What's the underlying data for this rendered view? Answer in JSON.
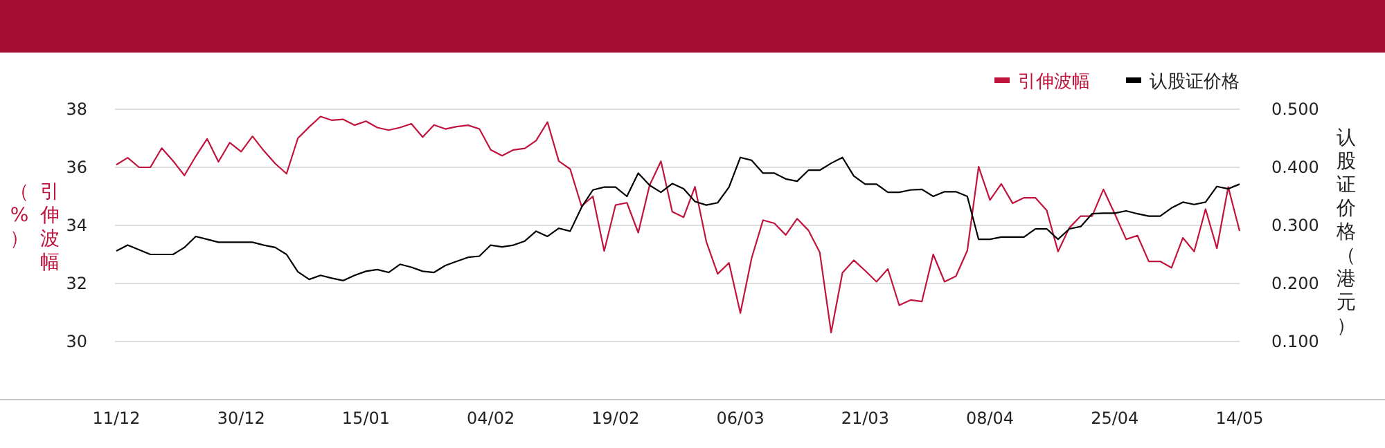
{
  "chart_data": {
    "type": "line",
    "categories": [
      "11/12",
      null,
      null,
      null,
      null,
      null,
      null,
      null,
      null,
      null,
      null,
      "30/12",
      null,
      null,
      null,
      null,
      null,
      null,
      null,
      null,
      null,
      null,
      "15/01",
      null,
      null,
      null,
      null,
      null,
      null,
      null,
      null,
      null,
      null,
      "04/02",
      null,
      null,
      null,
      null,
      null,
      null,
      null,
      null,
      null,
      null,
      "19/02",
      null,
      null,
      null,
      null,
      null,
      null,
      null,
      null,
      null,
      null,
      "06/03",
      null,
      null,
      null,
      null,
      null,
      null,
      null,
      null,
      null,
      null,
      "21/03",
      null,
      null,
      null,
      null,
      null,
      null,
      null,
      null,
      null,
      null,
      "08/04",
      null,
      null,
      null,
      null,
      null,
      null,
      null,
      null,
      null,
      null,
      "25/04",
      null,
      null,
      null,
      null,
      null,
      null,
      null,
      null,
      null,
      null,
      "14/05"
    ],
    "series": [
      {
        "name": "引伸波幅",
        "color": "#c0143c",
        "values": [
          36.09,
          36.33,
          36.0,
          36.0,
          36.66,
          36.22,
          35.72,
          36.38,
          36.98,
          36.19,
          36.85,
          36.54,
          37.07,
          36.57,
          36.13,
          35.78,
          37.0,
          37.39,
          37.75,
          37.62,
          37.65,
          37.45,
          37.59,
          37.37,
          37.28,
          37.37,
          37.5,
          37.04,
          37.46,
          37.32,
          37.4,
          37.45,
          37.32,
          36.6,
          36.4,
          36.6,
          36.65,
          36.92,
          37.56,
          36.21,
          35.94,
          34.66,
          35.0,
          33.12,
          34.7,
          34.78,
          33.75,
          35.38,
          36.21,
          34.47,
          34.28,
          35.33,
          33.44,
          32.33,
          32.71,
          30.98,
          32.88,
          34.18,
          34.07,
          33.67,
          34.23,
          33.83,
          33.07,
          30.31,
          32.37,
          32.8,
          32.44,
          32.06,
          32.5,
          31.25,
          31.43,
          31.38,
          33.0,
          32.06,
          32.25,
          33.13,
          36.02,
          34.87,
          35.43,
          34.76,
          34.95,
          34.95,
          34.52,
          33.1,
          33.92,
          34.32,
          34.32,
          35.24,
          34.4,
          33.52,
          33.65,
          32.76,
          32.76,
          32.54,
          33.57,
          33.1,
          34.56,
          33.21,
          35.32,
          33.81
        ]
      },
      {
        "name": "认股证价格",
        "color": "#000000",
        "axis": "y2",
        "values": [
          0.256,
          0.266,
          0.258,
          0.25,
          0.25,
          0.25,
          0.262,
          0.281,
          0.276,
          0.271,
          0.271,
          0.271,
          0.271,
          0.266,
          0.262,
          0.25,
          0.22,
          0.207,
          0.214,
          0.209,
          0.205,
          0.214,
          0.221,
          0.224,
          0.219,
          0.233,
          0.228,
          0.221,
          0.219,
          0.231,
          0.238,
          0.245,
          0.247,
          0.266,
          0.263,
          0.266,
          0.273,
          0.29,
          0.281,
          0.295,
          0.29,
          0.331,
          0.361,
          0.366,
          0.366,
          0.35,
          0.39,
          0.369,
          0.357,
          0.372,
          0.363,
          0.341,
          0.335,
          0.339,
          0.366,
          0.417,
          0.412,
          0.39,
          0.39,
          0.38,
          0.376,
          0.395,
          0.395,
          0.407,
          0.417,
          0.385,
          0.371,
          0.371,
          0.357,
          0.357,
          0.361,
          0.362,
          0.35,
          0.358,
          0.358,
          0.35,
          0.276,
          0.276,
          0.28,
          0.28,
          0.28,
          0.294,
          0.294,
          0.276,
          0.294,
          0.298,
          0.32,
          0.321,
          0.321,
          0.325,
          0.32,
          0.316,
          0.316,
          0.33,
          0.34,
          0.336,
          0.34,
          0.367,
          0.363,
          0.371
        ]
      }
    ],
    "ylabel": "引伸波幅（%）",
    "y2label": "认股证价格（港元）",
    "ylim": [
      28,
      38
    ],
    "yticks": [
      30,
      32,
      34,
      36,
      38
    ],
    "y2lim": [
      0,
      0.5
    ],
    "y2ticks": [
      {
        "value": 0.1,
        "label": "0.100"
      },
      {
        "value": 0.2,
        "label": "0.200"
      },
      {
        "value": 0.3,
        "label": "0.300"
      },
      {
        "value": 0.4,
        "label": "0.400"
      },
      {
        "value": 0.5,
        "label": "0.500"
      }
    ],
    "grid": "y",
    "legend": "top right",
    "marker": "none",
    "line_style": "solid"
  }
}
